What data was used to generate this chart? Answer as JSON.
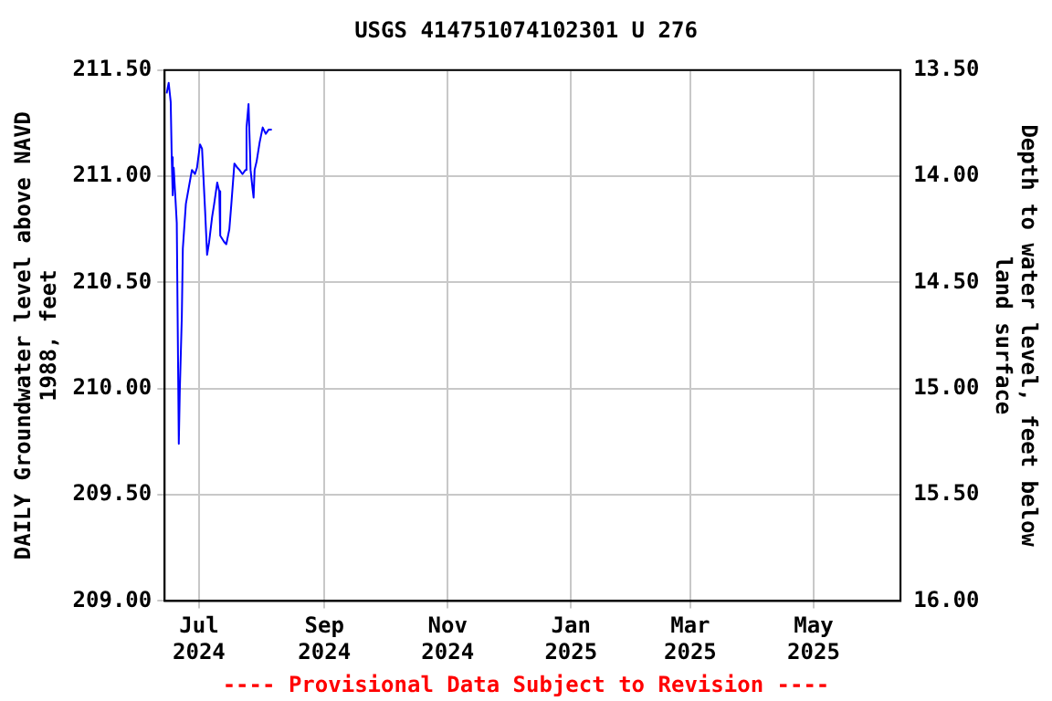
{
  "chart_data": {
    "type": "line",
    "title": "USGS 414751074102301 U 276",
    "ylabel": "DAILY Groundwater level above NAVD 1988, feet",
    "y2label": "Depth to water level, feet below land surface",
    "annotations": [
      "---- Provisional Data Subject to Revision ----"
    ],
    "x": [
      "2024-06-15",
      "2024-06-16",
      "2024-06-17",
      "2024-06-17T12:00",
      "2024-06-18",
      "2024-06-18T12:00",
      "2024-06-20",
      "2024-06-21",
      "2024-06-21T12:00",
      "2024-06-22T12:00",
      "2024-06-23",
      "2024-06-24T12:00",
      "2024-06-26",
      "2024-06-27T12:00",
      "2024-06-29",
      "2024-06-30",
      "2024-07-01T12:00",
      "2024-07-02T12:00",
      "2024-07-04",
      "2024-07-05",
      "2024-07-06",
      "2024-07-07T12:00",
      "2024-07-08T12:00",
      "2024-07-10",
      "2024-07-11",
      "2024-07-11T12:00",
      "2024-07-13T12:00",
      "2024-07-14T12:00",
      "2024-07-16",
      "2024-07-17",
      "2024-07-18T12:00",
      "2024-07-20",
      "2024-07-21",
      "2024-07-22T12:00",
      "2024-07-24",
      "2024-07-24T12:00",
      "2024-07-25T12:00",
      "2024-07-26T12:00",
      "2024-07-27T12:00",
      "2024-07-28",
      "2024-07-28T12:00",
      "2024-07-29T12:00",
      "2024-07-31",
      "2024-08-01T12:00",
      "2024-08-03",
      "2024-08-04T12:00",
      "2024-08-06"
    ],
    "series": [
      {
        "color": "#0000ff",
        "values": [
          211.39,
          211.44,
          211.35,
          211.09,
          210.91,
          211.04,
          210.78,
          209.74,
          209.99,
          210.34,
          210.66,
          210.87,
          210.95,
          211.03,
          211.01,
          211.04,
          211.15,
          211.13,
          210.84,
          210.63,
          210.69,
          210.81,
          210.87,
          210.97,
          210.93,
          210.72,
          210.69,
          210.68,
          210.75,
          210.87,
          211.06,
          211.04,
          211.03,
          211.01,
          211.03,
          211.23,
          211.34,
          211.03,
          210.94,
          210.9,
          211.03,
          211.07,
          211.16,
          211.23,
          211.2,
          211.22,
          211.22
        ]
      }
    ],
    "xlim": [
      "2024-06-14",
      "2025-06-13"
    ],
    "xticks": [
      {
        "value": "2024-07-01",
        "label": "Jul 2024"
      },
      {
        "value": "2024-09-01",
        "label": "Sep 2024"
      },
      {
        "value": "2024-11-01",
        "label": "Nov 2024"
      },
      {
        "value": "2025-01-01",
        "label": "Jan 2025"
      },
      {
        "value": "2025-03-01",
        "label": "Mar 2025"
      },
      {
        "value": "2025-05-01",
        "label": "May 2025"
      }
    ],
    "ylim": [
      209,
      211.5
    ],
    "yticks": [
      {
        "value": 209,
        "label": "209.00"
      },
      {
        "value": 209.5,
        "label": "209.50"
      },
      {
        "value": 210,
        "label": "210.00"
      },
      {
        "value": 210.5,
        "label": "210.50"
      },
      {
        "value": 211,
        "label": "211.00"
      },
      {
        "value": 211.5,
        "label": "211.50"
      }
    ],
    "y2lim": [
      16,
      13.5
    ],
    "y2ticks": [
      {
        "value": 16,
        "label": "16.00"
      },
      {
        "value": 15.5,
        "label": "15.50"
      },
      {
        "value": 15,
        "label": "15.00"
      },
      {
        "value": 14.5,
        "label": "14.50"
      },
      {
        "value": 14,
        "label": "14.00"
      },
      {
        "value": 13.5,
        "label": "13.50"
      }
    ],
    "grid": true,
    "legend": false,
    "marker": "none",
    "line_style": "solid"
  }
}
